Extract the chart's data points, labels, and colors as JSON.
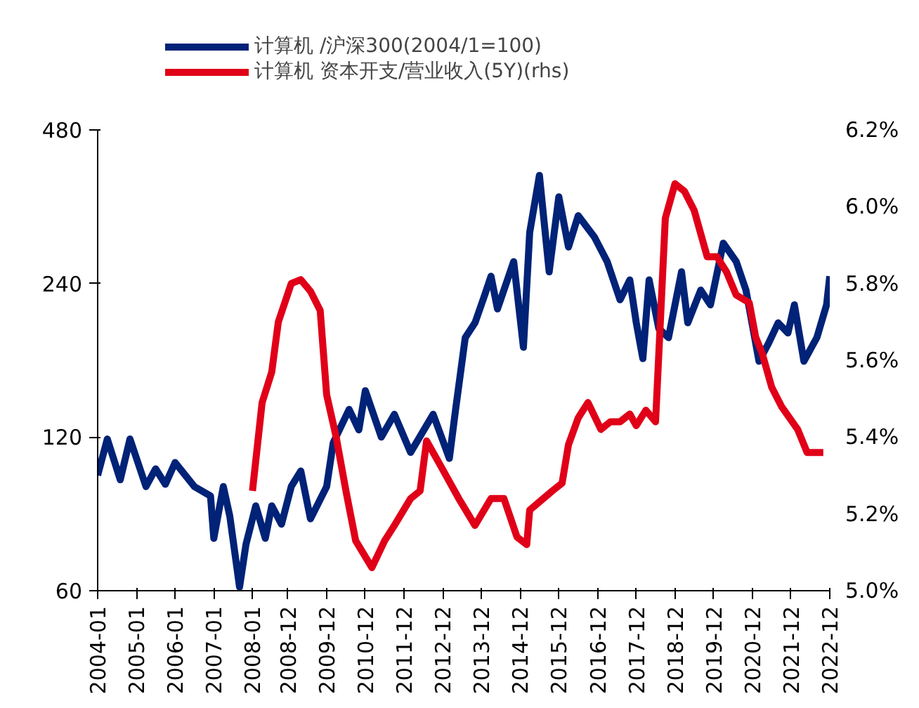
{
  "chart_data": {
    "type": "line",
    "log": "y",
    "grid": false,
    "legend": "top",
    "marker": "none",
    "line_style": "solid",
    "xlim": [
      "2004-01",
      "2022-12"
    ],
    "xticks": [
      "2004-01",
      "2005-01",
      "2006-01",
      "2007-01",
      "2008-01",
      "2008-12",
      "2009-12",
      "2010-12",
      "2011-12",
      "2012-12",
      "2013-12",
      "2014-12",
      "2015-12",
      "2016-12",
      "2017-12",
      "2018-12",
      "2019-12",
      "2020-12",
      "2021-12",
      "2022-12"
    ],
    "ylim": [
      60,
      480
    ],
    "yticks": [
      60,
      120,
      240,
      480
    ],
    "y2lim": [
      5.0,
      6.2
    ],
    "y2ticks": [
      {
        "value": 5.0,
        "label": "5.0%"
      },
      {
        "value": 5.2,
        "label": "5.2%"
      },
      {
        "value": 5.4,
        "label": "5.4%"
      },
      {
        "value": 5.6,
        "label": "5.6%"
      },
      {
        "value": 5.8,
        "label": "5.8%"
      },
      {
        "value": 6.0,
        "label": "6.0%"
      },
      {
        "value": 6.2,
        "label": "6.2%"
      }
    ],
    "series": [
      {
        "name": "计算机 /沪深300(2004/1=100)",
        "color": "#002277",
        "x": [
          "2004-01",
          "2004-04",
          "2004-08",
          "2004-11",
          "2005-04",
          "2005-07",
          "2005-10",
          "2006-01",
          "2006-07",
          "2006-12",
          "2007-01",
          "2007-04",
          "2007-06",
          "2007-09",
          "2007-11",
          "2008-02",
          "2008-05",
          "2008-07",
          "2008-10",
          "2009-01",
          "2009-04",
          "2009-07",
          "2009-12",
          "2010-02",
          "2010-07",
          "2010-10",
          "2010-12",
          "2011-05",
          "2011-09",
          "2012-02",
          "2012-09",
          "2013-02",
          "2013-04",
          "2013-07",
          "2013-10",
          "2014-01",
          "2014-03",
          "2014-05",
          "2014-10",
          "2015-01",
          "2015-03",
          "2015-06",
          "2015-09",
          "2015-12",
          "2016-03",
          "2016-06",
          "2016-11",
          "2017-03",
          "2017-07",
          "2017-10",
          "2017-12",
          "2018-02",
          "2018-04",
          "2018-07",
          "2018-10",
          "2019-02",
          "2019-04",
          "2019-08",
          "2019-11",
          "2020-03",
          "2020-07",
          "2020-10",
          "2021-02",
          "2021-05",
          "2021-08",
          "2021-11",
          "2022-01",
          "2022-04",
          "2022-08",
          "2022-11",
          "2022-12"
        ],
        "values": [
          101,
          119,
          99,
          119,
          96,
          104,
          97,
          107,
          96,
          92,
          76,
          96,
          84,
          61,
          74,
          88,
          76,
          88,
          81,
          96,
          103,
          83,
          96,
          117,
          136,
          124,
          148,
          120,
          133,
          112,
          133,
          109,
          136,
          188,
          201,
          228,
          248,
          214,
          265,
          180,
          302,
          391,
          253,
          355,
          283,
          326,
          296,
          265,
          223,
          244,
          201,
          171,
          244,
          196,
          188,
          253,
          201,
          233,
          218,
          288,
          265,
          233,
          169,
          183,
          201,
          192,
          218,
          169,
          188,
          218,
          248
        ]
      },
      {
        "name": "计算机 资本开支/营业收入(5Y)(rhs)",
        "color": "#e00018",
        "axis": "y2",
        "x": [
          "2008-01",
          "2008-04",
          "2008-07",
          "2008-09",
          "2009-01",
          "2009-04",
          "2009-07",
          "2009-10",
          "2009-12",
          "2010-03",
          "2010-06",
          "2010-09",
          "2011-02",
          "2011-06",
          "2011-09",
          "2012-02",
          "2012-05",
          "2012-07",
          "2012-11",
          "2013-05",
          "2013-10",
          "2014-03",
          "2014-07",
          "2014-11",
          "2015-02",
          "2015-03",
          "2015-10",
          "2016-01",
          "2016-03",
          "2016-06",
          "2016-09",
          "2017-01",
          "2017-04",
          "2017-07",
          "2017-10",
          "2017-12",
          "2018-03",
          "2018-06",
          "2018-09",
          "2018-12",
          "2019-03",
          "2019-06",
          "2019-10",
          "2020-01",
          "2020-04",
          "2020-07",
          "2020-11",
          "2021-01",
          "2021-03",
          "2021-06",
          "2021-09",
          "2022-02",
          "2022-05",
          "2022-10"
        ],
        "values": [
          5.26,
          5.49,
          5.57,
          5.7,
          5.8,
          5.81,
          5.78,
          5.73,
          5.51,
          5.4,
          5.26,
          5.13,
          5.06,
          5.13,
          5.17,
          5.24,
          5.26,
          5.39,
          5.33,
          5.24,
          5.17,
          5.24,
          5.24,
          5.14,
          5.12,
          5.21,
          5.26,
          5.28,
          5.38,
          5.45,
          5.49,
          5.42,
          5.44,
          5.44,
          5.46,
          5.43,
          5.47,
          5.44,
          5.97,
          6.06,
          6.04,
          5.99,
          5.87,
          5.87,
          5.83,
          5.77,
          5.75,
          5.66,
          5.62,
          5.53,
          5.48,
          5.42,
          5.36,
          5.36
        ]
      }
    ]
  }
}
